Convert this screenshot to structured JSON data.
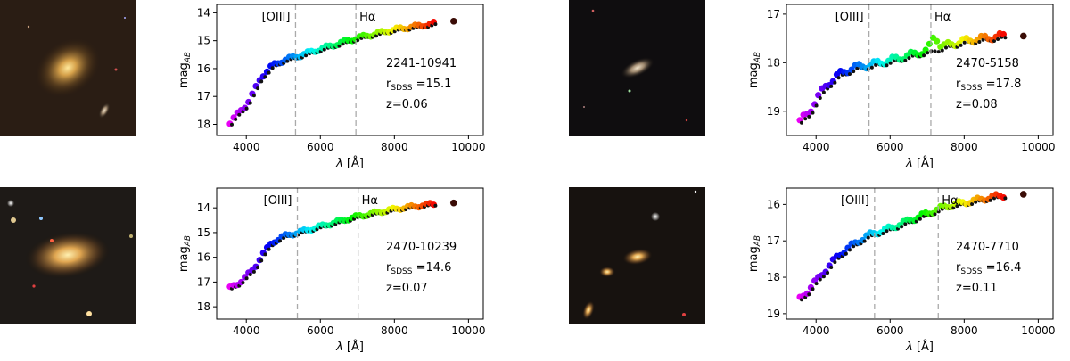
{
  "chart_data": [
    {
      "type": "scatter",
      "id": "2241-10941",
      "xlabel": "λ [Å]",
      "ylabel": "mag_AB",
      "xlim": [
        3200,
        10400
      ],
      "ylim": [
        18.4,
        13.7
      ],
      "xticks": [
        4000,
        6000,
        8000,
        10000
      ],
      "yticks": [
        14,
        15,
        16,
        17,
        18
      ],
      "lines": [
        {
          "label": "[OIII]",
          "x": 5330
        },
        {
          "label": "Hα",
          "x": 6960
        }
      ],
      "annotations": [
        "2241-10941",
        "r_SDSS =15.1",
        "z=0.06"
      ],
      "anchors": [
        [
          3550,
          17.95
        ],
        [
          3750,
          17.65
        ],
        [
          4000,
          17.3
        ],
        [
          4200,
          16.85
        ],
        [
          4400,
          16.3
        ],
        [
          4700,
          15.9
        ],
        [
          5000,
          15.7
        ],
        [
          5400,
          15.55
        ],
        [
          6000,
          15.3
        ],
        [
          6500,
          15.1
        ],
        [
          7000,
          14.9
        ],
        [
          7500,
          14.75
        ],
        [
          8000,
          14.6
        ],
        [
          8500,
          14.5
        ],
        [
          9000,
          14.4
        ],
        [
          9100,
          14.38
        ]
      ],
      "broadband_point": [
        9600,
        14.3
      ]
    },
    {
      "type": "scatter",
      "id": "2470-5158",
      "xlabel": "λ [Å]",
      "ylabel": "mag_AB",
      "xlim": [
        3200,
        10400
      ],
      "ylim": [
        19.5,
        16.8
      ],
      "xticks": [
        4000,
        6000,
        8000,
        10000
      ],
      "yticks": [
        17,
        18,
        19
      ],
      "lines": [
        {
          "label": "[OIII]",
          "x": 5430
        },
        {
          "label": "Hα",
          "x": 7100
        }
      ],
      "annotations": [
        "2470-5158",
        "r_SDSS =17.8",
        "z=0.08"
      ],
      "anchors": [
        [
          3550,
          19.2
        ],
        [
          3800,
          19.05
        ],
        [
          4000,
          18.75
        ],
        [
          4300,
          18.45
        ],
        [
          4600,
          18.25
        ],
        [
          5000,
          18.1
        ],
        [
          5400,
          18.05
        ],
        [
          6000,
          17.95
        ],
        [
          6500,
          17.85
        ],
        [
          7000,
          17.75
        ],
        [
          7500,
          17.65
        ],
        [
          8000,
          17.55
        ],
        [
          8500,
          17.5
        ],
        [
          9000,
          17.45
        ],
        [
          9100,
          17.45
        ]
      ],
      "broadband_point": [
        9600,
        17.45
      ]
    },
    {
      "type": "scatter",
      "id": "2470-10239",
      "xlabel": "λ [Å]",
      "ylabel": "mag_AB",
      "xlim": [
        3200,
        10400
      ],
      "ylim": [
        18.5,
        13.2
      ],
      "xticks": [
        4000,
        6000,
        8000,
        10000
      ],
      "yticks": [
        14,
        15,
        16,
        17,
        18
      ],
      "lines": [
        {
          "label": "[OIII]",
          "x": 5380
        },
        {
          "label": "Hα",
          "x": 7020
        }
      ],
      "annotations": [
        "2470-10239",
        "r_SDSS =14.6",
        "z=0.07"
      ],
      "anchors": [
        [
          3550,
          17.25
        ],
        [
          3750,
          17.1
        ],
        [
          4000,
          16.75
        ],
        [
          4200,
          16.5
        ],
        [
          4400,
          15.95
        ],
        [
          4700,
          15.4
        ],
        [
          5000,
          15.15
        ],
        [
          5400,
          15.0
        ],
        [
          6000,
          14.75
        ],
        [
          6500,
          14.55
        ],
        [
          7000,
          14.35
        ],
        [
          7500,
          14.2
        ],
        [
          8000,
          14.05
        ],
        [
          8500,
          13.95
        ],
        [
          9000,
          13.85
        ],
        [
          9100,
          13.85
        ]
      ],
      "broadband_point": [
        9600,
        13.8
      ]
    },
    {
      "type": "scatter",
      "id": "2470-7710",
      "xlabel": "λ [Å]",
      "ylabel": "mag_AB",
      "xlim": [
        3200,
        10400
      ],
      "ylim": [
        19.15,
        15.55
      ],
      "xticks": [
        4000,
        6000,
        8000,
        10000
      ],
      "yticks": [
        16,
        17,
        18,
        19
      ],
      "lines": [
        {
          "label": "[OIII]",
          "x": 5580
        },
        {
          "label": "Hα",
          "x": 7300
        }
      ],
      "annotations": [
        "2470-7710",
        "r_SDSS =16.4",
        "z=0.11"
      ],
      "anchors": [
        [
          3550,
          18.6
        ],
        [
          3750,
          18.4
        ],
        [
          4000,
          18.1
        ],
        [
          4300,
          17.75
        ],
        [
          4600,
          17.4
        ],
        [
          5000,
          17.1
        ],
        [
          5400,
          16.85
        ],
        [
          6000,
          16.65
        ],
        [
          6500,
          16.45
        ],
        [
          7000,
          16.25
        ],
        [
          7500,
          16.05
        ],
        [
          8000,
          15.95
        ],
        [
          8500,
          15.85
        ],
        [
          9000,
          15.75
        ],
        [
          9100,
          15.75
        ]
      ],
      "broadband_point": [
        9600,
        15.72
      ]
    }
  ],
  "thumbnails": [
    {
      "name": "galaxy-cutout-2241-10941"
    },
    {
      "name": "galaxy-cutout-2470-5158"
    },
    {
      "name": "galaxy-cutout-2470-10239"
    },
    {
      "name": "galaxy-cutout-2470-7710"
    }
  ]
}
